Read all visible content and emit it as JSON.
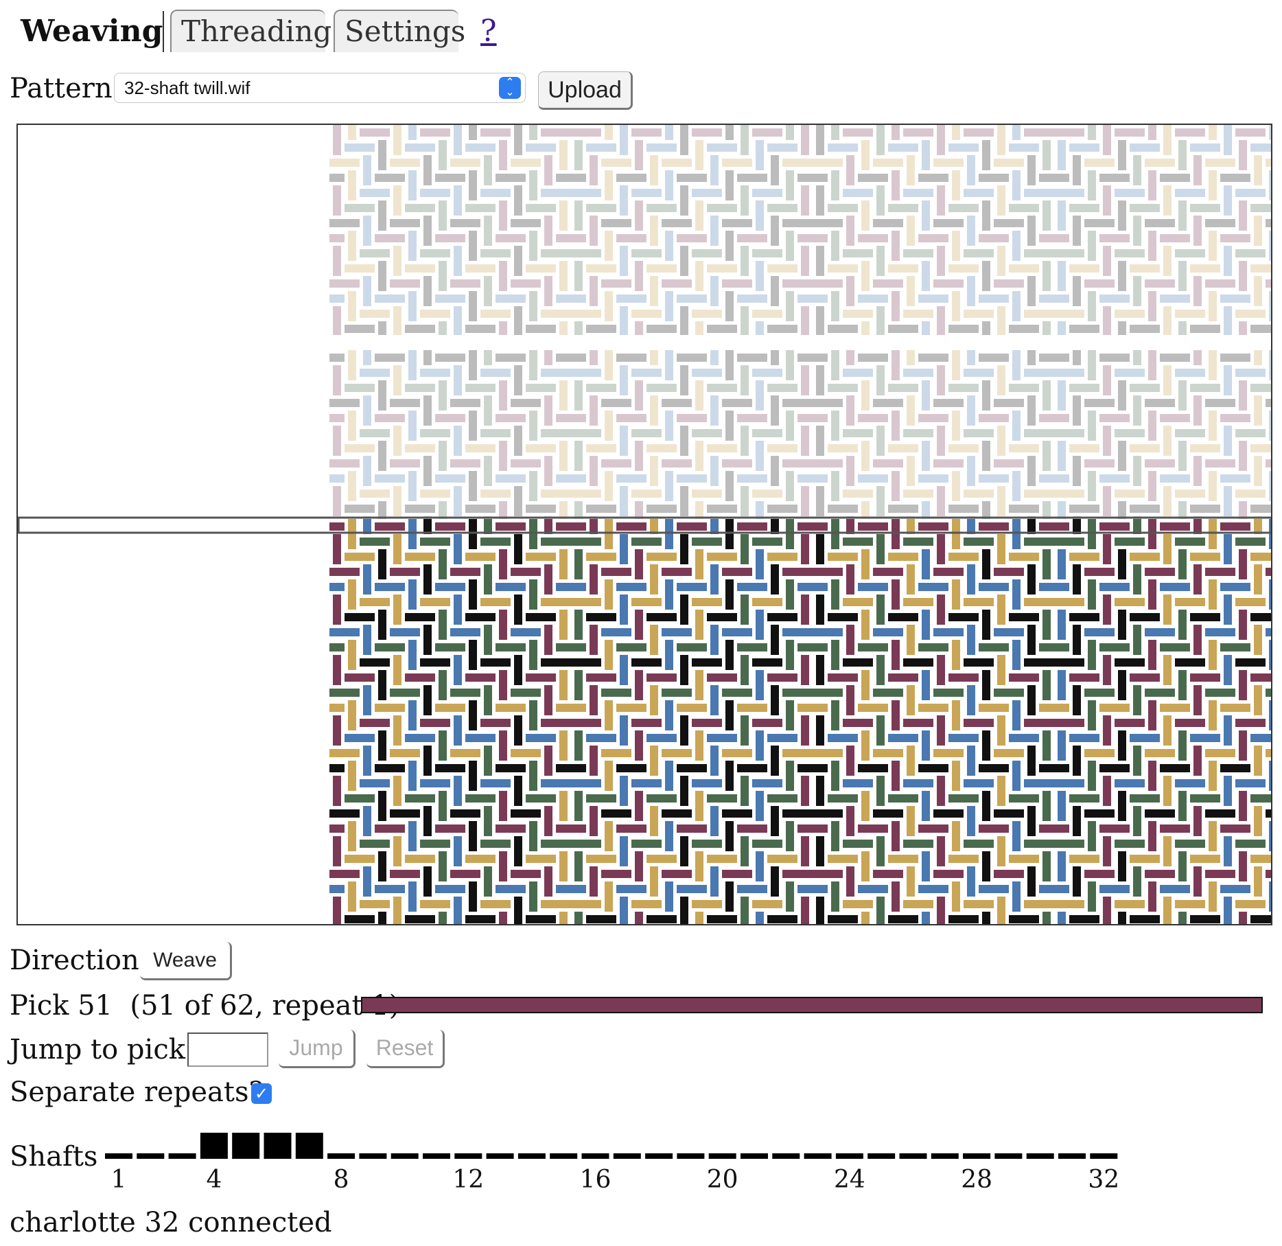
{
  "tabs": {
    "weaving": "Weaving",
    "threading": "Threading",
    "settings": "Settings",
    "help": "?"
  },
  "pattern": {
    "label": "Pattern",
    "selected": "32-shaft twill.wif",
    "upload_label": "Upload"
  },
  "direction": {
    "label": "Direction",
    "button": "Weave"
  },
  "pick": {
    "text": "Pick 51  (51 of 62, repeat 1)",
    "progress": 1.0,
    "bar_color": "#7a3a56"
  },
  "jump": {
    "label": "Jump to pick",
    "value": "",
    "jump_label": "Jump",
    "reset_label": "Reset"
  },
  "separate_repeats": {
    "label": "Separate repeats?",
    "checked": true
  },
  "shafts": {
    "label": "Shafts",
    "count": 32,
    "raised": [
      4,
      5,
      6,
      7
    ],
    "tick_labels": [
      "1",
      "4",
      "8",
      "12",
      "16",
      "20",
      "24",
      "28",
      "32"
    ]
  },
  "status": {
    "text": "charlotte 32 connected"
  },
  "colors": {
    "thread_colors": [
      "#7a3a56",
      "#4a78b0",
      "#4a6a4e",
      "#c9a556",
      "#111111"
    ],
    "accent": "#2d7cf0"
  }
}
